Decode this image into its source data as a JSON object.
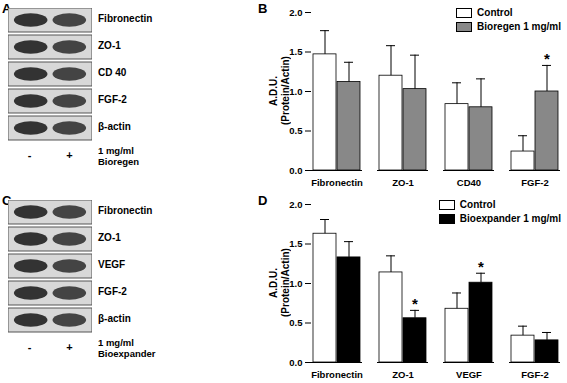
{
  "chart_data": [
    {
      "type": "bar",
      "title": "B",
      "y_label": "A.D.U.\n(Protein/Actin)",
      "categories": [
        "Fibronectin",
        "ZO-1",
        "CD40",
        "FGF-2"
      ],
      "series": [
        {
          "name": "Control",
          "color": "#ffffff",
          "values": [
            1.47,
            1.2,
            0.84,
            0.24
          ],
          "errors": [
            0.3,
            0.38,
            0.27,
            0.2
          ]
        },
        {
          "name": "Bioregen 1 mg/ml",
          "color": "#888888",
          "values": [
            1.12,
            1.03,
            0.8,
            1.0
          ],
          "errors": [
            0.25,
            0.43,
            0.36,
            0.33
          ]
        }
      ],
      "annotations": [
        {
          "text": "*",
          "category": "FGF-2",
          "series": "Bioregen 1 mg/ml"
        }
      ],
      "ylim": [
        0,
        2
      ],
      "yticks": [
        {
          "value": 0,
          "label": "0.0"
        },
        {
          "value": 0.5,
          "label": "0.5"
        },
        {
          "value": 1,
          "label": "1.0"
        },
        {
          "value": 1.5,
          "label": "1.5"
        },
        {
          "value": 2,
          "label": "2.0"
        }
      ],
      "legend": "top-right"
    },
    {
      "type": "bar",
      "title": "D",
      "y_label": "A.D.U.\n(Protein/Actin)",
      "categories": [
        "Fibronectin",
        "ZO-1",
        "VEGF",
        "FGF-2"
      ],
      "series": [
        {
          "name": "Control",
          "color": "#ffffff",
          "values": [
            1.63,
            1.14,
            0.68,
            0.34
          ],
          "errors": [
            0.18,
            0.21,
            0.2,
            0.12
          ]
        },
        {
          "name": "Bioexpander 1 mg/ml",
          "color": "#000000",
          "values": [
            1.33,
            0.56,
            1.01,
            0.28
          ],
          "errors": [
            0.2,
            0.1,
            0.12,
            0.1
          ]
        }
      ],
      "annotations": [
        {
          "text": "*",
          "category": "ZO-1",
          "series": "Bioexpander 1 mg/ml"
        },
        {
          "text": "*",
          "category": "VEGF",
          "series": "Bioexpander 1 mg/ml"
        }
      ],
      "ylim": [
        0,
        2
      ],
      "yticks": [
        {
          "value": 0,
          "label": "0.0"
        },
        {
          "value": 0.5,
          "label": "0.5"
        },
        {
          "value": 1,
          "label": "1.0"
        },
        {
          "value": 1.5,
          "label": "1.5"
        },
        {
          "value": 2,
          "label": "2.0"
        }
      ],
      "legend": "top-right"
    }
  ],
  "blots": [
    {
      "panel": "A",
      "bands": [
        "Fibronectin",
        "ZO-1",
        "CD 40",
        "FGF-2",
        "β-actin"
      ],
      "lanes": [
        "-",
        "+"
      ],
      "treatment": [
        "1 mg/ml",
        "Bioregen"
      ]
    },
    {
      "panel": "C",
      "bands": [
        "Fibronectin",
        "ZO-1",
        "VEGF",
        "FGF-2",
        "β-actin"
      ],
      "lanes": [
        "-",
        "+"
      ],
      "treatment": [
        "1 mg/ml",
        "Bioexpander"
      ]
    }
  ]
}
